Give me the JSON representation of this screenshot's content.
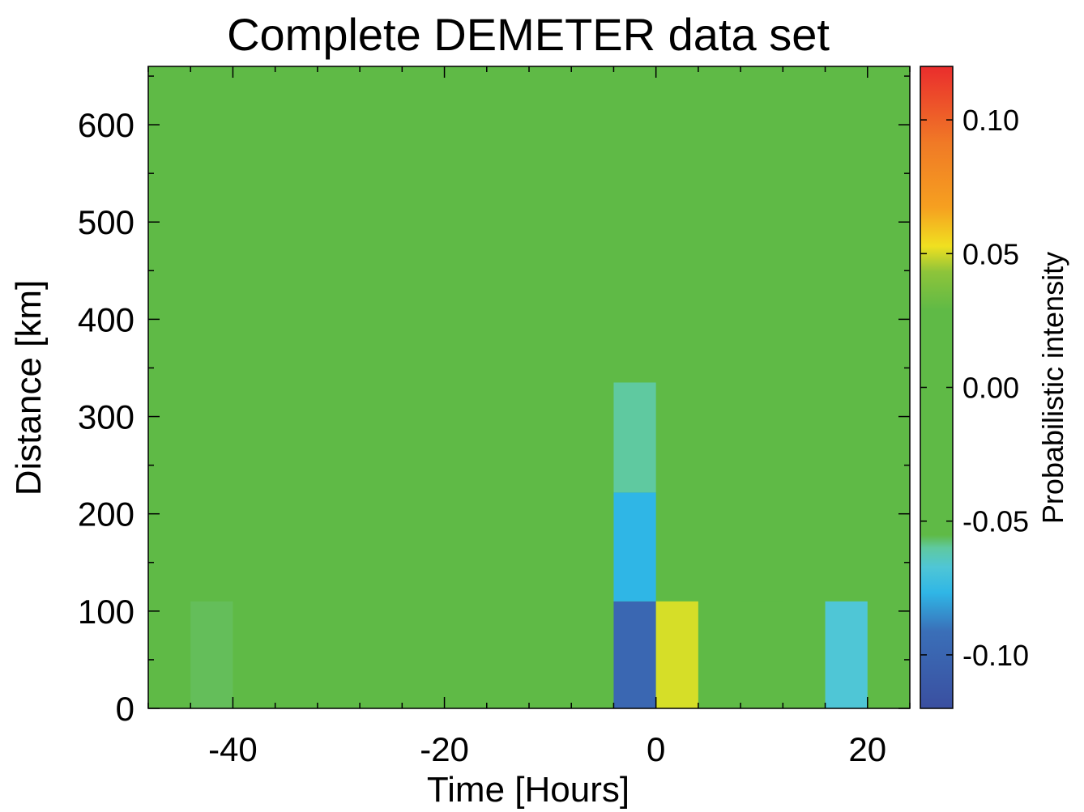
{
  "chart_data": {
    "type": "heatmap",
    "title": "Complete DEMETER data set",
    "xlabel": "Time [Hours]",
    "ylabel": "Distance [km]",
    "colorbar_label": "Probabilistic intensity",
    "xlim": [
      -48,
      24
    ],
    "ylim": [
      0,
      660
    ],
    "x_ticks": [
      -40,
      -20,
      0,
      20
    ],
    "y_ticks": [
      0,
      100,
      200,
      300,
      400,
      500,
      600
    ],
    "colorbar_range": [
      -0.12,
      0.12
    ],
    "colorbar_ticks": [
      0.1,
      0.05,
      0.0,
      -0.05,
      -0.1
    ],
    "colorbar_tick_labels": [
      "0.10",
      "0.05",
      "0.00",
      "-0.05",
      "-0.10"
    ],
    "background_value": -0.05,
    "bin_width_hours": 4,
    "cells": [
      {
        "x0": -44,
        "x1": -40,
        "y0": 0,
        "y1": 110,
        "value": -0.055
      },
      {
        "x0": -4,
        "x1": 0,
        "y0": 0,
        "y1": 110,
        "value": -0.105
      },
      {
        "x0": 0,
        "x1": 4,
        "y0": 0,
        "y1": 110,
        "value": 0.07
      },
      {
        "x0": 16,
        "x1": 20,
        "y0": 0,
        "y1": 110,
        "value": -0.075
      },
      {
        "x0": -4,
        "x1": 0,
        "y0": 110,
        "y1": 222,
        "value": -0.085
      },
      {
        "x0": 8,
        "x1": 12,
        "y0": 110,
        "y1": 222,
        "value": -0.045
      },
      {
        "x0": -4,
        "x1": 0,
        "y0": 222,
        "y1": 335,
        "value": -0.066
      }
    ],
    "grid": false,
    "colors": {
      "background": "#5fba46",
      "axis": "#000000"
    }
  }
}
